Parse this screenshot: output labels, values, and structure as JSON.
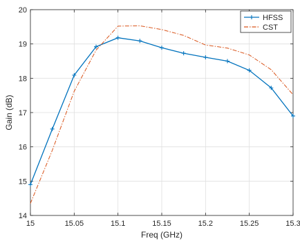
{
  "chart_data": {
    "type": "line",
    "xlabel": "Freq (GHz)",
    "ylabel": "Gain (dB)",
    "xlim": [
      15,
      15.3
    ],
    "ylim": [
      14,
      20
    ],
    "x_ticks": [
      15,
      15.05,
      15.1,
      15.15,
      15.2,
      15.25,
      15.3
    ],
    "x_tick_labels": [
      "15",
      "15.05",
      "15.1",
      "15.15",
      "15.2",
      "15.25",
      "15.3"
    ],
    "y_ticks": [
      14,
      15,
      16,
      17,
      18,
      19,
      20
    ],
    "y_tick_labels": [
      "14",
      "15",
      "16",
      "17",
      "18",
      "19",
      "20"
    ],
    "grid": true,
    "legend_position": "top-right",
    "series": [
      {
        "name": "HFSS",
        "color": "#0072BD",
        "style": "solid",
        "marker": "plus",
        "x": [
          15,
          15.025,
          15.05,
          15.075,
          15.1,
          15.125,
          15.15,
          15.175,
          15.2,
          15.225,
          15.25,
          15.275,
          15.3
        ],
        "y": [
          14.9,
          16.52,
          18.09,
          18.92,
          19.18,
          19.09,
          18.89,
          18.73,
          18.61,
          18.5,
          18.23,
          17.72,
          16.9
        ]
      },
      {
        "name": "CST",
        "color": "#D95319",
        "style": "dashdot",
        "marker": "none",
        "x": [
          15,
          15.025,
          15.05,
          15.075,
          15.1,
          15.125,
          15.15,
          15.175,
          15.2,
          15.225,
          15.25,
          15.275,
          15.3
        ],
        "y": [
          14.35,
          15.9,
          17.62,
          18.82,
          19.52,
          19.53,
          19.42,
          19.25,
          18.97,
          18.88,
          18.68,
          18.25,
          17.52
        ]
      }
    ]
  }
}
